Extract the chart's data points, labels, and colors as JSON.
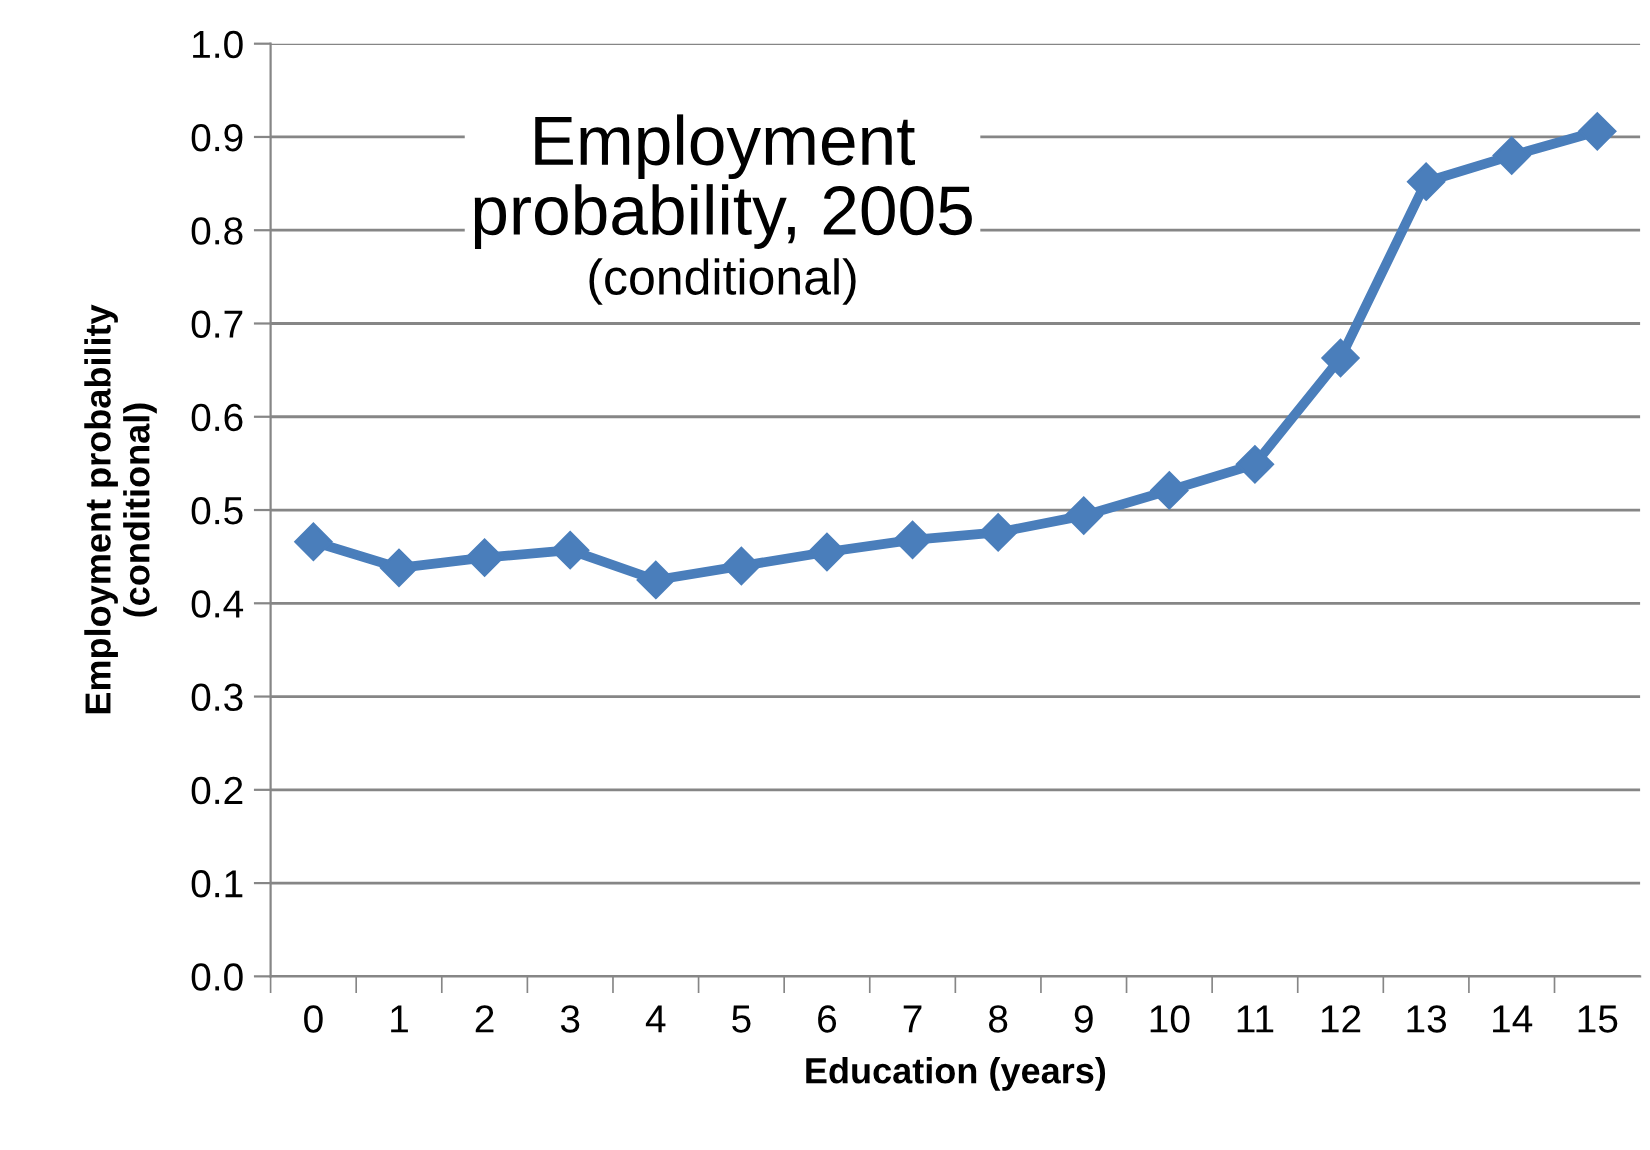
{
  "chart_data": {
    "type": "line",
    "title": "Employment\nprobability, 2005",
    "subtitle": "(conditional)",
    "xlabel": "Education (years)",
    "ylabel": "Employment probability\n(conditional)",
    "categories": [
      "0",
      "1",
      "2",
      "3",
      "4",
      "5",
      "6",
      "7",
      "8",
      "9",
      "10",
      "11",
      "12",
      "13",
      "14",
      "15"
    ],
    "series": [
      {
        "color": "#4a7ebb",
        "values": [
          0.466,
          0.438,
          0.449,
          0.457,
          0.425,
          0.44,
          0.455,
          0.468,
          0.476,
          0.494,
          0.521,
          0.549,
          0.663,
          0.852,
          0.88,
          0.906
        ]
      }
    ],
    "ylim": [
      0,
      1.0
    ],
    "yticks": [
      {
        "value": 0,
        "label": "0.0"
      },
      {
        "value": 0.1,
        "label": "0.1"
      },
      {
        "value": 0.2,
        "label": "0.2"
      },
      {
        "value": 0.3,
        "label": "0.3"
      },
      {
        "value": 0.4,
        "label": "0.4"
      },
      {
        "value": 0.5,
        "label": "0.5"
      },
      {
        "value": 0.6,
        "label": "0.6"
      },
      {
        "value": 0.7,
        "label": "0.7"
      },
      {
        "value": 0.8,
        "label": "0.8"
      },
      {
        "value": 0.9,
        "label": "0.9"
      },
      {
        "value": 1.0,
        "label": "1.0"
      }
    ],
    "grid": "y",
    "marker": "diamond",
    "line_style": "solid",
    "legend": false
  }
}
